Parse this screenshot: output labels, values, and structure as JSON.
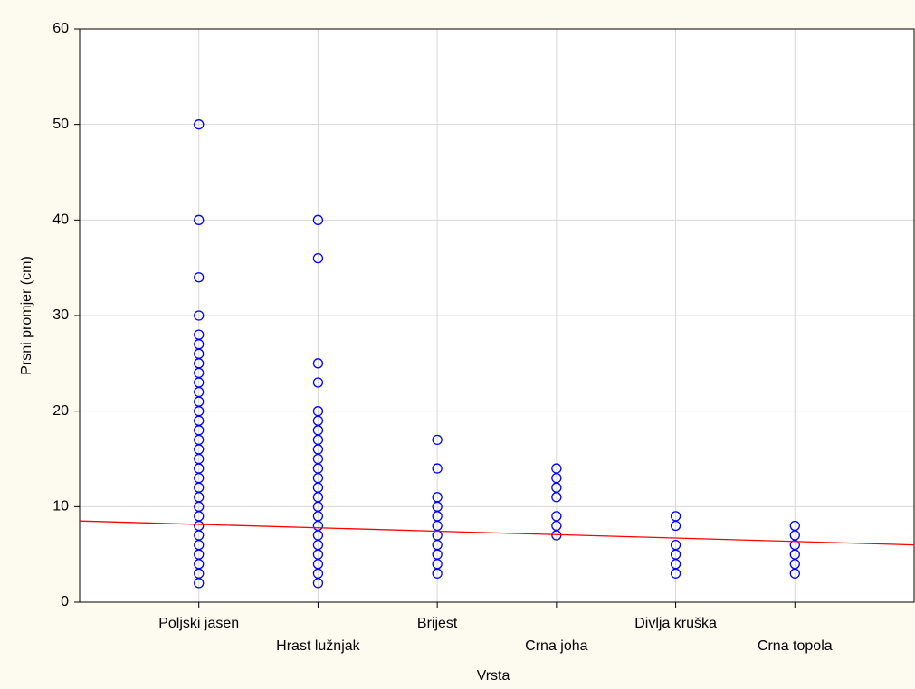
{
  "chart_data": {
    "type": "scatter",
    "x_label": "Vrsta",
    "y_label": "Prsni promjer (cm)",
    "categories": [
      "Poljski jasen",
      "Hrast lužnjak",
      "Brijest",
      "Crna joha",
      "Divlja kruška",
      "Crna topola"
    ],
    "values": [
      [
        50,
        40,
        34,
        30,
        28,
        27,
        26,
        25,
        24,
        23,
        22,
        21,
        20,
        19,
        18,
        17,
        16,
        15,
        14,
        13,
        12,
        11,
        10,
        9,
        8,
        7,
        6,
        5,
        4,
        3,
        2
      ],
      [
        40,
        36,
        25,
        23,
        20,
        19,
        18,
        17,
        16,
        15,
        14,
        13,
        12,
        11,
        10,
        9,
        8,
        7,
        6,
        5,
        4,
        3,
        2
      ],
      [
        17,
        14,
        11,
        10,
        9,
        8,
        7,
        6,
        5,
        4,
        3
      ],
      [
        14,
        13,
        12,
        11,
        9,
        8,
        7
      ],
      [
        9,
        8,
        6,
        5,
        4,
        3
      ],
      [
        8,
        7,
        6,
        5,
        4,
        3
      ]
    ],
    "marker_color": "#0000ff",
    "trend_line": {
      "color": "#ff0000",
      "values": [
        8.5,
        6.0
      ]
    },
    "ylim": [
      0,
      60
    ],
    "yticks": [
      0,
      10,
      20,
      30,
      40,
      50,
      60
    ],
    "grid": true
  }
}
